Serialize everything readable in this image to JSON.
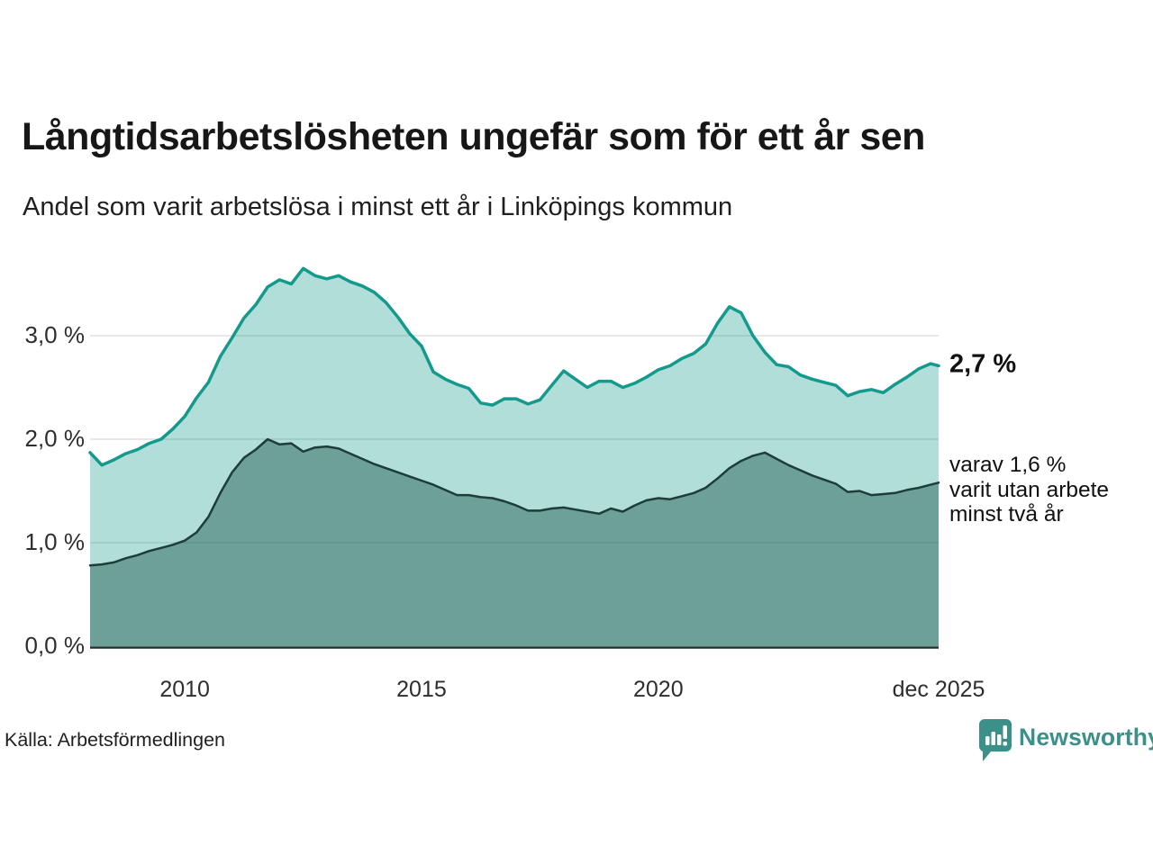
{
  "header": {
    "title": "Långtidsarbetslösheten ungefär som för ett år sen",
    "subtitle": "Andel som varit arbetslösa i minst ett år i Linköpings kommun"
  },
  "chart_data": {
    "type": "area",
    "title": "Långtidsarbetslösheten ungefär som för ett år sen",
    "subtitle": "Andel som varit arbetslösa i minst ett år i Linköpings kommun",
    "unit": "%",
    "x_domain": [
      2008.0,
      2025.92
    ],
    "y_domain": [
      0.0,
      3.8
    ],
    "grid": "horizontal",
    "grid_color": "#e0e0e0",
    "axis_color": "#22302d",
    "y_ticks": [
      {
        "v": 3.0,
        "label": "3,0 %"
      },
      {
        "v": 2.0,
        "label": "2,0 %"
      },
      {
        "v": 1.0,
        "label": "1,0 %"
      },
      {
        "v": 0.0,
        "label": "0,0 %"
      }
    ],
    "x_ticks": [
      {
        "v": 2010,
        "label": "2010"
      },
      {
        "v": 2015,
        "label": "2015"
      },
      {
        "v": 2020,
        "label": "2020"
      },
      {
        "v": 2025.92,
        "label": "dec 2025"
      }
    ],
    "x": [
      2008.0,
      2008.25,
      2008.5,
      2008.75,
      2009.0,
      2009.25,
      2009.5,
      2009.75,
      2010.0,
      2010.25,
      2010.5,
      2010.75,
      2011.0,
      2011.25,
      2011.5,
      2011.75,
      2012.0,
      2012.25,
      2012.5,
      2012.75,
      2013.0,
      2013.25,
      2013.5,
      2013.75,
      2014.0,
      2014.25,
      2014.5,
      2014.75,
      2015.0,
      2015.25,
      2015.5,
      2015.75,
      2016.0,
      2016.25,
      2016.5,
      2016.75,
      2017.0,
      2017.25,
      2017.5,
      2017.75,
      2018.0,
      2018.25,
      2018.5,
      2018.75,
      2019.0,
      2019.25,
      2019.5,
      2019.75,
      2020.0,
      2020.25,
      2020.5,
      2020.75,
      2021.0,
      2021.25,
      2021.5,
      2021.75,
      2022.0,
      2022.25,
      2022.5,
      2022.75,
      2023.0,
      2023.25,
      2023.5,
      2023.75,
      2024.0,
      2024.25,
      2024.5,
      2024.75,
      2025.0,
      2025.25,
      2025.5,
      2025.75,
      2025.92
    ],
    "series": [
      {
        "name": "Andel arbetslösa minst ett år",
        "latest_value": 2.7,
        "line_color": "#149a8c",
        "fill_color": "rgba(20,154,140,0.33)",
        "line_width": 3.5,
        "values": [
          1.87,
          1.75,
          1.8,
          1.86,
          1.9,
          1.96,
          2.0,
          2.1,
          2.22,
          2.4,
          2.55,
          2.8,
          2.98,
          3.17,
          3.3,
          3.47,
          3.54,
          3.5,
          3.65,
          3.58,
          3.55,
          3.58,
          3.52,
          3.48,
          3.42,
          3.32,
          3.18,
          3.02,
          2.9,
          2.65,
          2.58,
          2.53,
          2.49,
          2.35,
          2.33,
          2.39,
          2.39,
          2.34,
          2.38,
          2.52,
          2.66,
          2.58,
          2.5,
          2.56,
          2.56,
          2.5,
          2.54,
          2.6,
          2.67,
          2.71,
          2.78,
          2.83,
          2.92,
          3.12,
          3.28,
          3.22,
          3.0,
          2.84,
          2.72,
          2.7,
          2.62,
          2.58,
          2.55,
          2.52,
          2.42,
          2.46,
          2.48,
          2.45,
          2.53,
          2.6,
          2.68,
          2.73,
          2.71
        ]
      },
      {
        "name": "Andel utan arbete minst två år",
        "latest_value": 1.6,
        "line_color": "#1d3d38",
        "fill_color": "rgba(25,85,75,0.45)",
        "line_width": 2.5,
        "values": [
          0.78,
          0.79,
          0.81,
          0.85,
          0.88,
          0.92,
          0.95,
          0.98,
          1.02,
          1.1,
          1.25,
          1.48,
          1.68,
          1.82,
          1.9,
          2.0,
          1.95,
          1.96,
          1.88,
          1.92,
          1.93,
          1.91,
          1.86,
          1.81,
          1.76,
          1.72,
          1.68,
          1.64,
          1.6,
          1.56,
          1.51,
          1.46,
          1.46,
          1.44,
          1.43,
          1.4,
          1.36,
          1.31,
          1.31,
          1.33,
          1.34,
          1.32,
          1.3,
          1.28,
          1.33,
          1.3,
          1.36,
          1.41,
          1.43,
          1.42,
          1.45,
          1.48,
          1.53,
          1.62,
          1.72,
          1.79,
          1.84,
          1.87,
          1.81,
          1.75,
          1.7,
          1.65,
          1.61,
          1.57,
          1.49,
          1.5,
          1.46,
          1.47,
          1.48,
          1.51,
          1.53,
          1.56,
          1.58
        ]
      }
    ],
    "annotations": {
      "primary": "2,7 %",
      "secondary_lines": [
        "varav 1,6 %",
        "varit utan arbete",
        "minst två år"
      ]
    }
  },
  "footer": {
    "source": "Källa: Arbetsförmedlingen",
    "brand": "Newsworthy"
  },
  "colors": {
    "accent": "#149a8c",
    "dark_series": "#1d3d38",
    "brand": "#3b9189"
  }
}
